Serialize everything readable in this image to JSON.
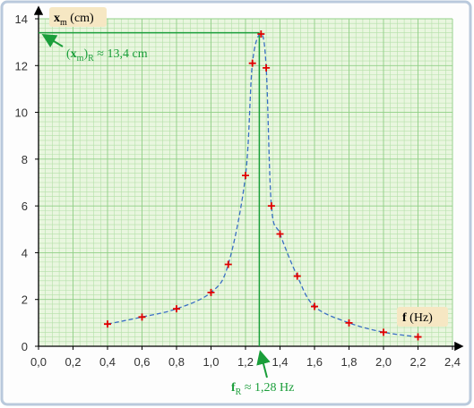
{
  "chart_data": {
    "type": "scatter",
    "ylabel": [
      "x",
      "m",
      " (cm)"
    ],
    "xlabel": [
      "f",
      " (Hz)"
    ],
    "x": [
      0.4,
      0.6,
      0.8,
      1.0,
      1.1,
      1.2,
      1.24,
      1.29,
      1.32,
      1.35,
      1.4,
      1.5,
      1.6,
      1.8,
      2.0,
      2.2
    ],
    "series": [
      {
        "color": "#e00000",
        "line_color": "#3a6fc4",
        "values": [
          0.95,
          1.25,
          1.6,
          2.3,
          3.5,
          7.3,
          12.1,
          13.35,
          11.9,
          6.0,
          4.8,
          3.0,
          1.7,
          1.0,
          0.6,
          0.4
        ]
      }
    ],
    "xlim": [
      0,
      2.4
    ],
    "ylim": [
      0,
      14
    ],
    "xticks": [
      {
        "value": 0,
        "label": "0,0"
      },
      {
        "value": 0.2,
        "label": "0,2"
      },
      {
        "value": 0.4,
        "label": "0,4"
      },
      {
        "value": 0.6,
        "label": "0,6"
      },
      {
        "value": 0.8,
        "label": "0,8"
      },
      {
        "value": 1.0,
        "label": "1,0"
      },
      {
        "value": 1.2,
        "label": "1,2"
      },
      {
        "value": 1.4,
        "label": "1,4"
      },
      {
        "value": 1.6,
        "label": "1,6"
      },
      {
        "value": 1.8,
        "label": "1,8"
      },
      {
        "value": 2.0,
        "label": "2,0"
      },
      {
        "value": 2.2,
        "label": "2,2"
      },
      {
        "value": 2.4,
        "label": "2,4"
      }
    ],
    "yticks": [
      0,
      2,
      4,
      6,
      8,
      10,
      12,
      14
    ],
    "grid": true,
    "resonance": {
      "x": 1.28,
      "y": 13.4,
      "color": "#1a9e3a"
    },
    "annotations": [
      [
        "(",
        "x",
        "m",
        ")",
        "R",
        " ≈ 13,4 cm"
      ],
      [
        "f",
        "R",
        " ≈ 1,28 Hz"
      ]
    ]
  }
}
